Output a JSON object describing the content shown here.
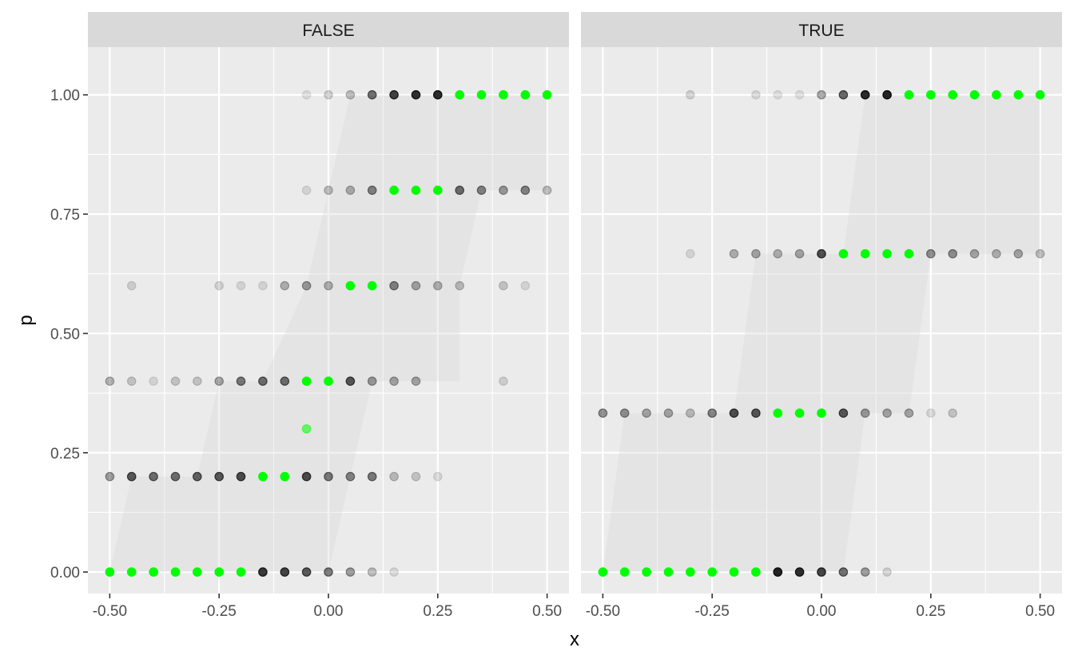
{
  "chart_data": {
    "type": "scatter",
    "title": "",
    "xlabel": "x",
    "ylabel": "p",
    "xlim": [
      -0.55,
      0.55
    ],
    "ylim": [
      -0.045,
      1.1
    ],
    "x_ticks": [
      -0.5,
      -0.25,
      0,
      0.25,
      0.5
    ],
    "x_tick_labels": [
      "-0.50",
      "-0.25",
      "0.00",
      "0.25",
      "0.50"
    ],
    "y_ticks": [
      0,
      0.25,
      0.5,
      0.75,
      1
    ],
    "y_tick_labels": [
      "0.00",
      "0.25",
      "0.50",
      "0.75",
      "1.00"
    ],
    "grid": true,
    "colors": {
      "panel_bg": "#ebebeb",
      "strip_bg": "#d9d9d9",
      "grid": "#ffffff",
      "point": "#000000",
      "highlight": "#00ff00",
      "ribbon": "#d3d3d3"
    },
    "panels": [
      {
        "label": "FALSE",
        "ribbon": {
          "x": [
            -0.5,
            -0.45,
            -0.45,
            -0.3,
            -0.25,
            -0.25,
            -0.15,
            -0.05,
            -0.05,
            0.0,
            0.05,
            0.05,
            0.1,
            0.3,
            0.3,
            0.35,
            0.5
          ],
          "lo": [
            0.0,
            0.0,
            0.0,
            0.0,
            0.0,
            0.0,
            0.0,
            0.0,
            0.0,
            0.0,
            0.2,
            0.2,
            0.4,
            0.4,
            0.6,
            0.8,
            0.8
          ],
          "hi": [
            0.0,
            0.2,
            0.2,
            0.2,
            0.4,
            0.4,
            0.4,
            0.6,
            0.6,
            0.8,
            1.0,
            1.0,
            1.0,
            1.0,
            1.0,
            1.0,
            1.0
          ]
        },
        "rows": [
          {
            "p": 1.0,
            "x": [
              -0.05,
              0.0,
              0.05,
              0.1,
              0.15,
              0.2,
              0.25,
              0.3,
              0.35,
              0.4,
              0.45,
              0.5
            ],
            "alpha": [
              0.1,
              0.18,
              0.25,
              0.6,
              0.82,
              0.9,
              0.92,
              1,
              1,
              1,
              1,
              1
            ],
            "green": [
              0,
              0,
              0,
              0,
              0,
              0,
              0,
              1,
              1,
              1,
              1,
              1
            ]
          },
          {
            "p": 0.8,
            "x": [
              -0.05,
              0.0,
              0.05,
              0.1,
              0.15,
              0.2,
              0.25,
              0.3,
              0.35,
              0.4,
              0.45,
              0.5
            ],
            "alpha": [
              0.12,
              0.25,
              0.3,
              0.5,
              1,
              1,
              1,
              0.6,
              0.5,
              0.4,
              0.5,
              0.25
            ],
            "green": [
              0,
              0,
              0,
              0,
              1,
              1,
              1,
              0,
              0,
              0,
              0,
              0
            ]
          },
          {
            "p": 0.6,
            "x": [
              -0.45,
              -0.25,
              -0.2,
              -0.15,
              -0.1,
              -0.05,
              0.0,
              0.05,
              0.1,
              0.15,
              0.2,
              0.25,
              0.3,
              0.4,
              0.45
            ],
            "alpha": [
              0.15,
              0.15,
              0.12,
              0.12,
              0.3,
              0.4,
              0.3,
              1,
              1,
              0.5,
              0.35,
              0.3,
              0.25,
              0.2,
              0.12
            ],
            "green": [
              0,
              0,
              0,
              0,
              0,
              0,
              0,
              1,
              1,
              0,
              0,
              0,
              0,
              0,
              0
            ]
          },
          {
            "p": 0.4,
            "x": [
              -0.5,
              -0.45,
              -0.4,
              -0.35,
              -0.3,
              -0.25,
              -0.2,
              -0.15,
              -0.1,
              -0.05,
              0.0,
              0.05,
              0.1,
              0.15,
              0.2,
              0.4
            ],
            "alpha": [
              0.3,
              0.2,
              0.12,
              0.2,
              0.2,
              0.35,
              0.55,
              0.6,
              0.6,
              1,
              1,
              0.7,
              0.4,
              0.35,
              0.35,
              0.15
            ],
            "green": [
              0,
              0,
              0,
              0,
              0,
              0,
              0,
              0,
              0,
              1,
              1,
              0,
              0,
              0,
              0,
              0
            ]
          },
          {
            "p": 0.3,
            "x": [
              -0.05
            ],
            "alpha": [
              0.55
            ],
            "green": [
              1
            ]
          },
          {
            "p": 0.2,
            "x": [
              -0.5,
              -0.45,
              -0.4,
              -0.35,
              -0.3,
              -0.25,
              -0.2,
              -0.15,
              -0.1,
              -0.05,
              0.0,
              0.05,
              0.1,
              0.15,
              0.2,
              0.25
            ],
            "alpha": [
              0.4,
              0.7,
              0.6,
              0.6,
              0.65,
              0.7,
              0.75,
              1,
              1,
              0.75,
              0.55,
              0.5,
              0.55,
              0.25,
              0.2,
              0.12
            ],
            "green": [
              0,
              0,
              0,
              0,
              0,
              0,
              0,
              1,
              1,
              0,
              0,
              0,
              0,
              0,
              0,
              0
            ]
          },
          {
            "p": 0.0,
            "x": [
              -0.5,
              -0.45,
              -0.4,
              -0.35,
              -0.3,
              -0.25,
              -0.2,
              -0.15,
              -0.1,
              -0.05,
              0.0,
              0.05,
              0.1,
              0.15
            ],
            "alpha": [
              1,
              1,
              1,
              1,
              1,
              1,
              1,
              0.85,
              0.8,
              0.7,
              0.55,
              0.4,
              0.25,
              0.12
            ],
            "green": [
              1,
              1,
              1,
              1,
              1,
              1,
              1,
              0,
              0,
              0,
              0,
              0,
              0,
              0
            ]
          }
        ]
      },
      {
        "label": "TRUE",
        "ribbon": {
          "x": [
            -0.5,
            -0.45,
            -0.4,
            -0.2,
            -0.15,
            -0.15,
            0.05,
            0.1,
            0.1,
            0.2,
            0.25,
            0.25,
            0.5
          ],
          "lo": [
            0.0,
            0.0,
            0.0,
            0.0,
            0.0,
            0.0,
            0.0,
            0.333,
            0.333,
            0.333,
            0.667,
            0.667,
            0.667
          ],
          "hi": [
            0.0,
            0.333,
            0.333,
            0.333,
            0.667,
            0.667,
            0.667,
            1.0,
            1.0,
            1.0,
            1.0,
            1.0,
            1.0
          ]
        },
        "rows": [
          {
            "p": 1.0,
            "x": [
              -0.3,
              -0.15,
              -0.1,
              -0.05,
              0.0,
              0.05,
              0.1,
              0.15,
              0.2,
              0.25,
              0.3,
              0.35,
              0.4,
              0.45,
              0.5
            ],
            "alpha": [
              0.15,
              0.12,
              0.1,
              0.1,
              0.35,
              0.65,
              0.92,
              0.95,
              1,
              1,
              1,
              1,
              1,
              1,
              1
            ],
            "green": [
              0,
              0,
              0,
              0,
              0,
              0,
              0,
              0,
              1,
              1,
              1,
              1,
              1,
              1,
              1
            ]
          },
          {
            "p": 0.667,
            "x": [
              -0.3,
              -0.2,
              -0.15,
              -0.1,
              -0.05,
              0.0,
              0.05,
              0.1,
              0.15,
              0.2,
              0.25,
              0.3,
              0.35,
              0.4,
              0.45,
              0.5
            ],
            "alpha": [
              0.12,
              0.3,
              0.35,
              0.3,
              0.35,
              0.75,
              1,
              1,
              1,
              1,
              0.45,
              0.45,
              0.35,
              0.3,
              0.35,
              0.25
            ],
            "green": [
              0,
              0,
              0,
              0,
              0,
              0,
              1,
              1,
              1,
              1,
              0,
              0,
              0,
              0,
              0,
              0
            ]
          },
          {
            "p": 0.333,
            "x": [
              -0.5,
              -0.45,
              -0.4,
              -0.35,
              -0.3,
              -0.25,
              -0.2,
              -0.15,
              -0.1,
              -0.05,
              0.0,
              0.05,
              0.1,
              0.15,
              0.2,
              0.25,
              0.3
            ],
            "alpha": [
              0.45,
              0.45,
              0.35,
              0.35,
              0.25,
              0.5,
              0.75,
              0.7,
              1,
              1,
              1,
              0.7,
              0.4,
              0.35,
              0.35,
              0.12,
              0.2
            ],
            "green": [
              0,
              0,
              0,
              0,
              0,
              0,
              0,
              0,
              1,
              1,
              1,
              0,
              0,
              0,
              0,
              0,
              0
            ]
          },
          {
            "p": 0.0,
            "x": [
              -0.5,
              -0.45,
              -0.4,
              -0.35,
              -0.3,
              -0.25,
              -0.2,
              -0.15,
              -0.1,
              -0.05,
              0.0,
              0.05,
              0.1,
              0.15
            ],
            "alpha": [
              1,
              1,
              1,
              1,
              1,
              1,
              1,
              1,
              0.95,
              0.9,
              0.8,
              0.6,
              0.4,
              0.15
            ],
            "green": [
              1,
              1,
              1,
              1,
              1,
              1,
              1,
              1,
              0,
              0,
              0,
              0,
              0,
              0
            ]
          }
        ]
      }
    ]
  }
}
